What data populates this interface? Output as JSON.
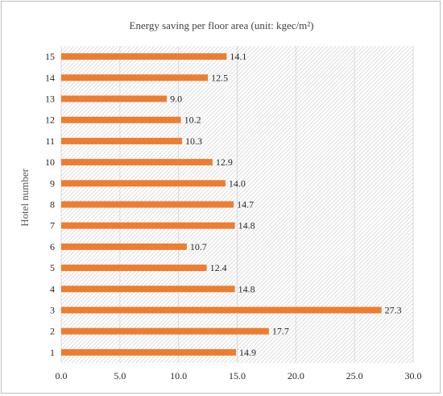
{
  "chart_data": {
    "type": "bar",
    "orientation": "horizontal",
    "title": "Energy saving per floor area (unit: kgec/m²)",
    "xlabel": "",
    "ylabel": "Hotel number",
    "categories": [
      "1",
      "2",
      "3",
      "4",
      "5",
      "6",
      "7",
      "8",
      "9",
      "10",
      "11",
      "12",
      "13",
      "14",
      "15"
    ],
    "values": [
      14.9,
      17.7,
      27.3,
      14.8,
      12.4,
      10.7,
      14.8,
      14.7,
      14.0,
      12.9,
      10.3,
      10.2,
      9.0,
      12.5,
      14.1
    ],
    "data_labels": [
      "14.9",
      "17.7",
      "27.3",
      "14.8",
      "12.4",
      "10.7",
      "14.8",
      "14.7",
      "14.0",
      "12.9",
      "10.3",
      "10.2",
      "9.0",
      "12.5",
      "14.1"
    ],
    "xlim": [
      0,
      30
    ],
    "xticks": [
      "0.0",
      "5.0",
      "10.0",
      "15.0",
      "20.0",
      "25.0",
      "30.0"
    ],
    "xtick_values": [
      0,
      5,
      10,
      15,
      20,
      25,
      30
    ],
    "grid": true,
    "bar_color": "#ed7d31",
    "plot_fill": "hatched"
  }
}
